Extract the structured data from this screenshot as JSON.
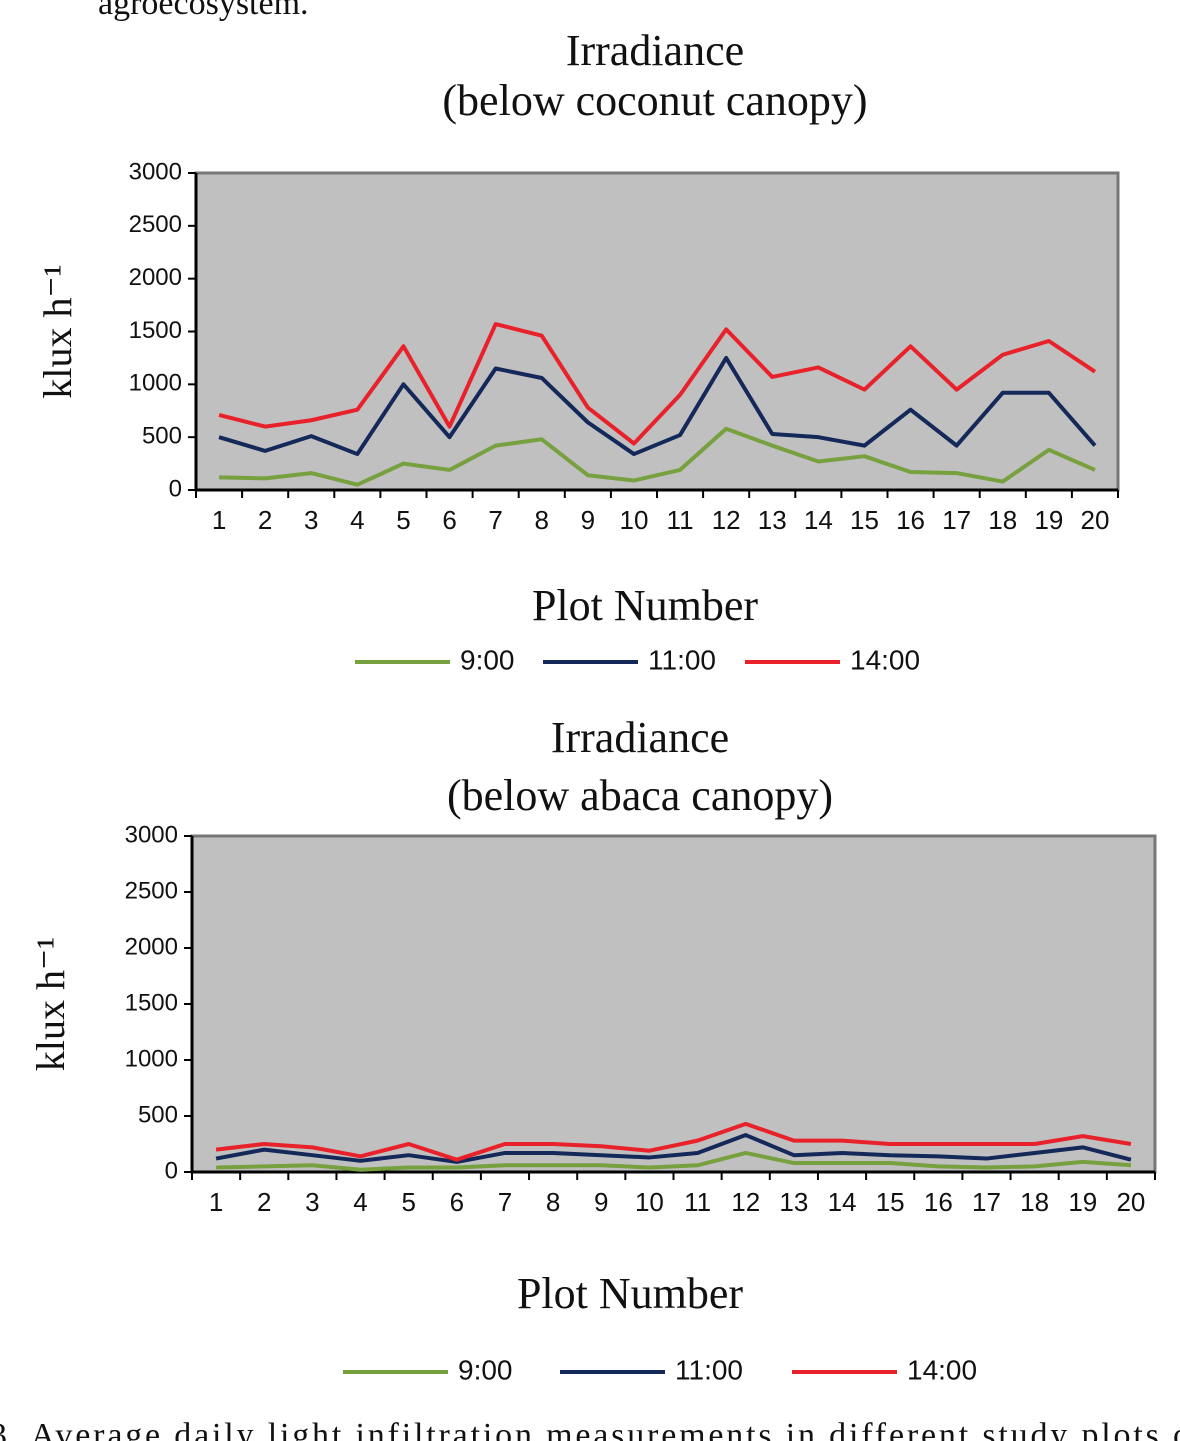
{
  "header_fragment": "agroecosystem.",
  "caption_fragment": "3. Average daily light infiltration measurements in different study plots o",
  "chart_data": [
    {
      "type": "line",
      "title": "Irradiance",
      "subtitle": "(below coconut canopy)",
      "x_label": "Plot Number",
      "y_label": "klux h⁻¹",
      "categories": [
        "1",
        "2",
        "3",
        "4",
        "5",
        "6",
        "7",
        "8",
        "9",
        "10",
        "11",
        "12",
        "13",
        "14",
        "15",
        "16",
        "17",
        "18",
        "19",
        "20"
      ],
      "series": [
        {
          "name": "9:00",
          "color": "#77a03f",
          "values": [
            120,
            110,
            160,
            50,
            250,
            190,
            420,
            480,
            140,
            90,
            190,
            580,
            420,
            270,
            320,
            170,
            160,
            80,
            380,
            190
          ]
        },
        {
          "name": "11:00",
          "color": "#14285a",
          "values": [
            500,
            370,
            510,
            340,
            1000,
            500,
            1150,
            1060,
            640,
            340,
            520,
            1250,
            530,
            500,
            420,
            760,
            420,
            920,
            920,
            420
          ]
        },
        {
          "name": "14:00",
          "color": "#e8212a",
          "values": [
            710,
            600,
            660,
            760,
            1360,
            600,
            1570,
            1460,
            780,
            440,
            900,
            1520,
            1070,
            1160,
            950,
            1360,
            950,
            1280,
            1410,
            1120
          ]
        }
      ],
      "ylim": [
        0,
        3000
      ],
      "yticks": [
        0,
        500,
        1000,
        1500,
        2000,
        2500,
        3000
      ],
      "plot_background": "#c0c0c0",
      "grid": false,
      "legend": "bottom"
    },
    {
      "type": "line",
      "title": "Irradiance",
      "subtitle": "(below abaca canopy)",
      "x_label": "Plot Number",
      "y_label": "klux h⁻¹",
      "categories": [
        "1",
        "2",
        "3",
        "4",
        "5",
        "6",
        "7",
        "8",
        "9",
        "10",
        "11",
        "12",
        "13",
        "14",
        "15",
        "16",
        "17",
        "18",
        "19",
        "20"
      ],
      "series": [
        {
          "name": "9:00",
          "color": "#77a03f",
          "values": [
            40,
            50,
            60,
            20,
            40,
            40,
            60,
            60,
            60,
            40,
            60,
            170,
            80,
            80,
            80,
            50,
            40,
            50,
            90,
            60
          ]
        },
        {
          "name": "11:00",
          "color": "#14285a",
          "values": [
            120,
            200,
            150,
            100,
            150,
            90,
            170,
            170,
            150,
            130,
            170,
            330,
            150,
            170,
            150,
            140,
            120,
            170,
            220,
            110
          ]
        },
        {
          "name": "14:00",
          "color": "#e8212a",
          "values": [
            200,
            250,
            220,
            140,
            250,
            110,
            250,
            250,
            230,
            190,
            280,
            430,
            280,
            280,
            250,
            250,
            250,
            250,
            320,
            250
          ]
        }
      ],
      "ylim": [
        0,
        3000
      ],
      "yticks": [
        0,
        500,
        1000,
        1500,
        2000,
        2500,
        3000
      ],
      "plot_background": "#c0c0c0",
      "grid": false,
      "legend": "bottom"
    }
  ]
}
